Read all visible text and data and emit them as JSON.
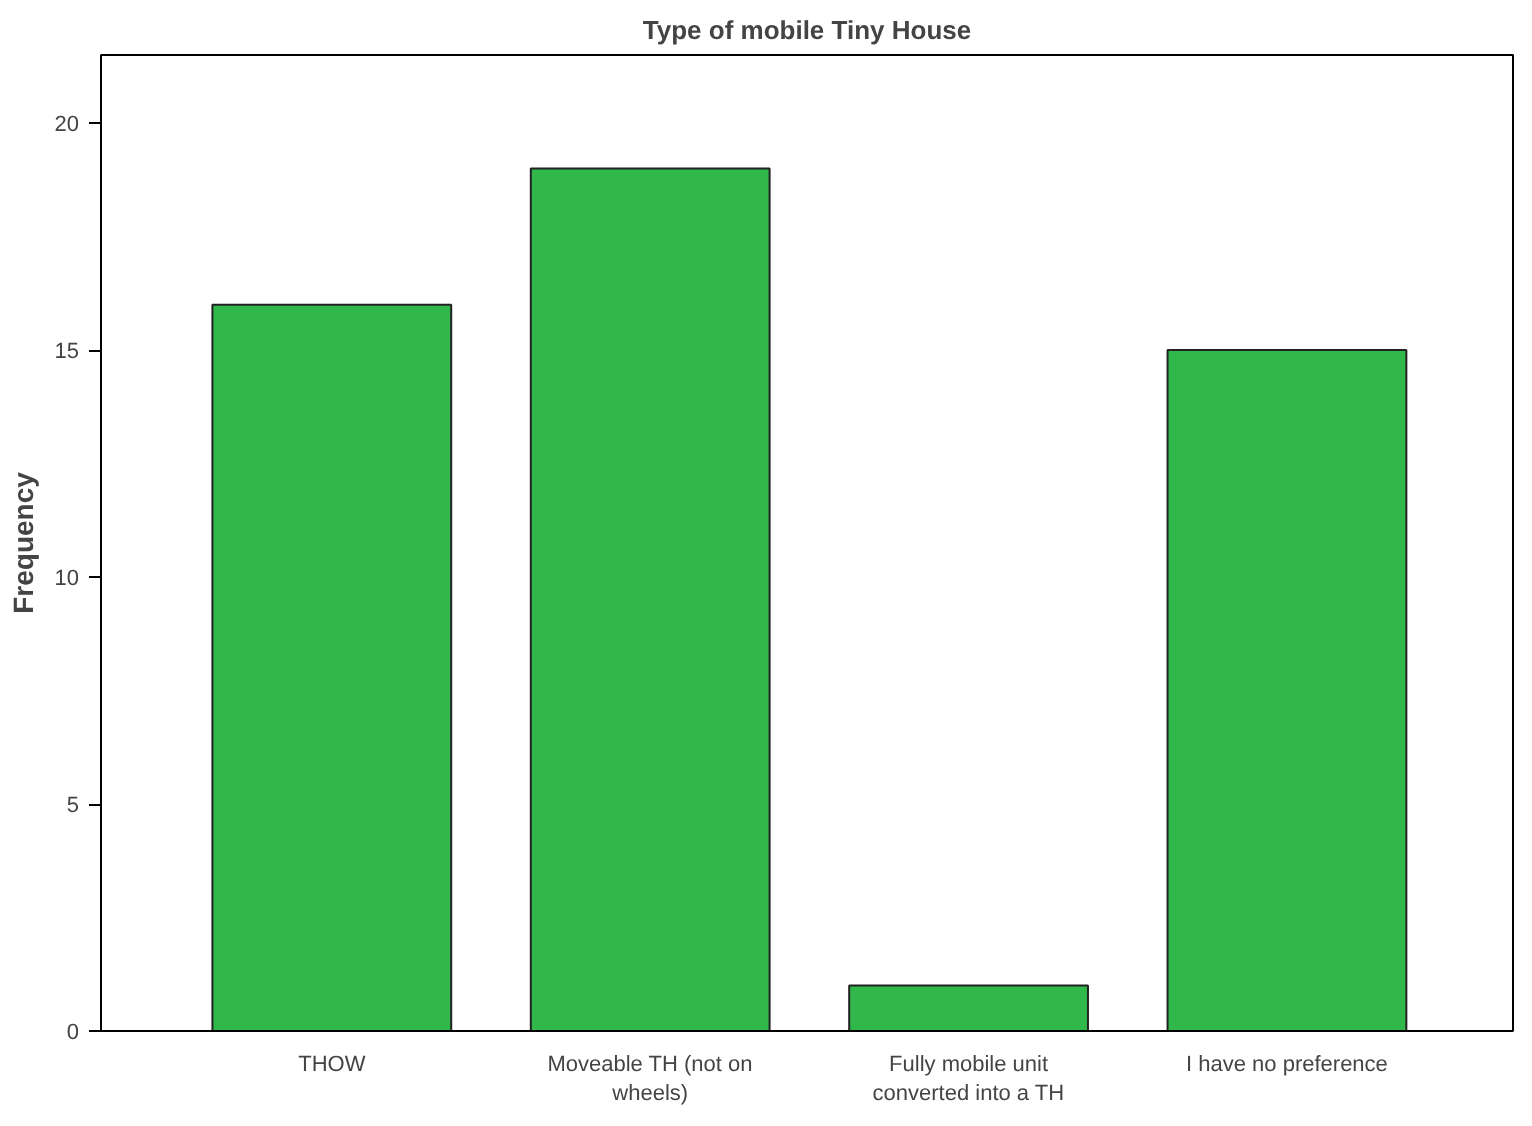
{
  "chart_data": {
    "type": "bar",
    "title": "Type of mobile Tiny House",
    "ylabel": "Frequency",
    "categories": [
      "THOW",
      "Moveable TH (not on wheels)",
      "Fully mobile unit converted into a TH",
      "I have no preference"
    ],
    "values": [
      16,
      19,
      1,
      15
    ],
    "color": "#31b84a",
    "ylim": [
      0,
      21.5
    ],
    "yticks": [
      0,
      5,
      10,
      15,
      20
    ],
    "grid": false
  }
}
